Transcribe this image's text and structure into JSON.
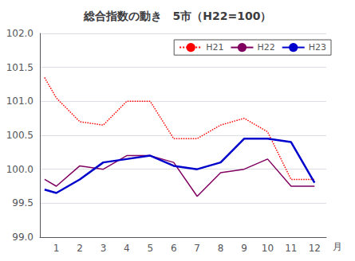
{
  "chart_data": {
    "type": "line",
    "title": "総合指数の動き　5市（H22=100）",
    "xlabel": "月",
    "x": [
      0.5,
      1,
      2,
      3,
      4,
      5,
      6,
      7,
      8,
      9,
      10,
      11,
      12
    ],
    "series": [
      {
        "name": "H21",
        "color": "#ff0000",
        "line_style": "dotted",
        "values": [
          101.35,
          101.05,
          100.7,
          100.65,
          101.0,
          101.0,
          100.45,
          100.45,
          100.65,
          100.75,
          100.55,
          99.85,
          99.85
        ]
      },
      {
        "name": "H22",
        "color": "#800060",
        "line_style": "solid",
        "values": [
          99.85,
          99.75,
          100.05,
          100.0,
          100.2,
          100.2,
          100.1,
          99.6,
          99.95,
          100.0,
          100.15,
          99.75,
          99.75
        ]
      },
      {
        "name": "H23",
        "color": "#0000cc",
        "line_style": "solid",
        "values": [
          99.7,
          99.65,
          99.85,
          100.1,
          100.15,
          100.2,
          100.05,
          100.0,
          100.1,
          100.45,
          100.45,
          100.4,
          99.8
        ]
      }
    ],
    "xlim": [
      0.3,
      12.5
    ],
    "xticks": [
      1,
      2,
      3,
      4,
      5,
      6,
      7,
      8,
      9,
      10,
      11,
      12
    ],
    "ylim": [
      99.0,
      102.0
    ],
    "yticks": [
      {
        "value": 99.0,
        "label": "99.0"
      },
      99.5,
      {
        "value": 100.0,
        "label": "100.0"
      },
      100.5,
      {
        "value": 101.0,
        "label": "101.0"
      },
      101.5,
      {
        "value": 102.0,
        "label": "102.0"
      }
    ],
    "grid": true,
    "legend": "upper right"
  }
}
